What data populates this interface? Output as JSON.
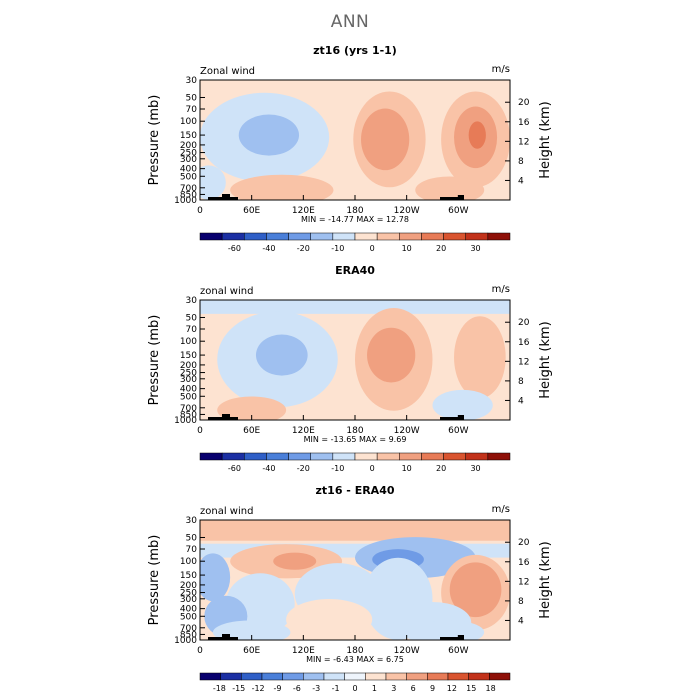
{
  "page_title": "ANN",
  "colors": {
    "frame": "#000000",
    "text": "#000000",
    "title_gray": "#666666"
  },
  "chart_data": [
    {
      "type": "heatmap",
      "title": "zt16 (yrs 1-1)",
      "left_label": "Zonal wind",
      "right_label": "m/s",
      "ylabel": "Pressure (mb)",
      "ylabel_right": "Height (km)",
      "xlabel": "",
      "pressure_ticks": [
        "30",
        "50",
        "70",
        "100",
        "150",
        "200",
        "250",
        "300",
        "400",
        "500",
        "700",
        "850",
        "1000"
      ],
      "height_ticks": [
        "4",
        "8",
        "12",
        "16",
        "20"
      ],
      "lon_ticks": [
        "0",
        "60E",
        "120E",
        "180",
        "120W",
        "60W"
      ],
      "stats_text": "MIN = -14.77  MAX = 12.78",
      "min": -14.77,
      "max": 12.78,
      "colorbar": {
        "labels": [
          "-60",
          "-40",
          "-20",
          "-10",
          "0",
          "10",
          "20",
          "30"
        ],
        "colors": [
          "#08006e",
          "#1b2fa3",
          "#2f5fc7",
          "#4a7fd9",
          "#6f9be6",
          "#9fc0f0",
          "#cfe3f8",
          "#fde3d1",
          "#f9c3a7",
          "#f0a080",
          "#e77b57",
          "#d9542f",
          "#c2321a",
          "#8e1008"
        ]
      },
      "features": [
        {
          "type": "band",
          "lat_from": 0,
          "lat_to": 360,
          "p_from": 30,
          "p_to": 1000,
          "color": "#fde3d1"
        },
        {
          "type": "blob",
          "lon": 75,
          "p": 160,
          "rx": 75,
          "ry": 1.3,
          "color": "#cfe3f8"
        },
        {
          "type": "blob",
          "lon": 80,
          "p": 150,
          "rx": 35,
          "ry": 0.6,
          "color": "#9fc0f0"
        },
        {
          "type": "blob",
          "lon": 10,
          "p": 600,
          "rx": 20,
          "ry": 0.5,
          "color": "#cfe3f8"
        },
        {
          "type": "blob",
          "lon": 220,
          "p": 170,
          "rx": 42,
          "ry": 1.4,
          "color": "#f9c3a7"
        },
        {
          "type": "blob",
          "lon": 215,
          "p": 170,
          "rx": 28,
          "ry": 0.9,
          "color": "#f0a080"
        },
        {
          "type": "blob",
          "lon": 320,
          "p": 170,
          "rx": 40,
          "ry": 1.4,
          "color": "#f9c3a7"
        },
        {
          "type": "blob",
          "lon": 320,
          "p": 160,
          "rx": 25,
          "ry": 0.9,
          "color": "#f0a080"
        },
        {
          "type": "blob",
          "lon": 322,
          "p": 150,
          "rx": 10,
          "ry": 0.4,
          "color": "#e77b57"
        },
        {
          "type": "blob",
          "lon": 95,
          "p": 750,
          "rx": 60,
          "ry": 0.45,
          "color": "#f9c3a7"
        },
        {
          "type": "blob",
          "lon": 290,
          "p": 750,
          "rx": 40,
          "ry": 0.4,
          "color": "#f9c3a7"
        }
      ]
    },
    {
      "type": "heatmap",
      "title": "ERA40",
      "left_label": "zonal wind",
      "right_label": "m/s",
      "ylabel": "Pressure (mb)",
      "ylabel_right": "Height (km)",
      "xlabel": "",
      "pressure_ticks": [
        "30",
        "50",
        "70",
        "100",
        "150",
        "200",
        "250",
        "300",
        "400",
        "500",
        "700",
        "850",
        "1000"
      ],
      "height_ticks": [
        "4",
        "8",
        "12",
        "16",
        "20"
      ],
      "lon_ticks": [
        "0",
        "60E",
        "120E",
        "180",
        "120W",
        "60W"
      ],
      "stats_text": "MIN = -13.65  MAX =   9.69",
      "min": -13.65,
      "max": 9.69,
      "colorbar": {
        "labels": [
          "-60",
          "-40",
          "-20",
          "-10",
          "0",
          "10",
          "20",
          "30"
        ],
        "colors": [
          "#08006e",
          "#1b2fa3",
          "#2f5fc7",
          "#4a7fd9",
          "#6f9be6",
          "#9fc0f0",
          "#cfe3f8",
          "#fde3d1",
          "#f9c3a7",
          "#f0a080",
          "#e77b57",
          "#d9542f",
          "#c2321a",
          "#8e1008"
        ]
      },
      "features": [
        {
          "type": "band",
          "lat_from": 0,
          "lat_to": 360,
          "p_from": 30,
          "p_to": 1000,
          "color": "#fde3d1"
        },
        {
          "type": "band",
          "lat_from": 0,
          "lat_to": 360,
          "p_from": 30,
          "p_to": 45,
          "color": "#cfe3f8"
        },
        {
          "type": "blob",
          "lon": 90,
          "p": 170,
          "rx": 70,
          "ry": 1.4,
          "color": "#cfe3f8"
        },
        {
          "type": "blob",
          "lon": 95,
          "p": 150,
          "rx": 30,
          "ry": 0.6,
          "color": "#9fc0f0"
        },
        {
          "type": "blob",
          "lon": 225,
          "p": 170,
          "rx": 45,
          "ry": 1.5,
          "color": "#f9c3a7"
        },
        {
          "type": "blob",
          "lon": 222,
          "p": 150,
          "rx": 28,
          "ry": 0.8,
          "color": "#f0a080"
        },
        {
          "type": "blob",
          "lon": 325,
          "p": 160,
          "rx": 30,
          "ry": 1.2,
          "color": "#f9c3a7"
        },
        {
          "type": "blob",
          "lon": 60,
          "p": 750,
          "rx": 40,
          "ry": 0.4,
          "color": "#f9c3a7"
        },
        {
          "type": "blob",
          "lon": 305,
          "p": 650,
          "rx": 35,
          "ry": 0.45,
          "color": "#cfe3f8"
        }
      ]
    },
    {
      "type": "heatmap",
      "title": "zt16 - ERA40",
      "left_label": "zonal wind",
      "right_label": "m/s",
      "ylabel": "Pressure (mb)",
      "ylabel_right": "Height (km)",
      "xlabel": "",
      "pressure_ticks": [
        "30",
        "50",
        "70",
        "100",
        "150",
        "200",
        "250",
        "300",
        "400",
        "500",
        "700",
        "850",
        "1000"
      ],
      "height_ticks": [
        "4",
        "8",
        "12",
        "16",
        "20"
      ],
      "lon_ticks": [
        "0",
        "60E",
        "120E",
        "180",
        "120W",
        "60W"
      ],
      "stats_text": "MIN =  -6.43  MAX =   6.75",
      "min": -6.43,
      "max": 6.75,
      "colorbar": {
        "labels": [
          "-18",
          "-15",
          "-12",
          "-9",
          "-6",
          "-3",
          "-1",
          "0",
          "1",
          "3",
          "6",
          "9",
          "12",
          "15",
          "18"
        ],
        "colors": [
          "#08006e",
          "#1b2fa3",
          "#2f5fc7",
          "#4a7fd9",
          "#6f9be6",
          "#9fc0f0",
          "#cfe3f8",
          "#eef4fb",
          "#fde3d1",
          "#f9c3a7",
          "#f0a080",
          "#e77b57",
          "#d9542f",
          "#c2321a",
          "#8e1008"
        ]
      },
      "features": [
        {
          "type": "band",
          "lat_from": 0,
          "lat_to": 360,
          "p_from": 30,
          "p_to": 1000,
          "color": "#fde3d1"
        },
        {
          "type": "band",
          "lat_from": 0,
          "lat_to": 360,
          "p_from": 30,
          "p_to": 55,
          "color": "#f9c3a7"
        },
        {
          "type": "band",
          "lat_from": 0,
          "lat_to": 360,
          "p_from": 60,
          "p_to": 90,
          "color": "#cfe3f8"
        },
        {
          "type": "blob",
          "lon": 250,
          "p": 90,
          "rx": 70,
          "ry": 0.6,
          "color": "#9fc0f0"
        },
        {
          "type": "blob",
          "lon": 230,
          "p": 95,
          "rx": 30,
          "ry": 0.3,
          "color": "#6f9be6"
        },
        {
          "type": "blob",
          "lon": 100,
          "p": 100,
          "rx": 65,
          "ry": 0.5,
          "color": "#f9c3a7"
        },
        {
          "type": "blob",
          "lon": 110,
          "p": 100,
          "rx": 25,
          "ry": 0.25,
          "color": "#f0a080"
        },
        {
          "type": "blob",
          "lon": 15,
          "p": 160,
          "rx": 20,
          "ry": 0.7,
          "color": "#9fc0f0"
        },
        {
          "type": "blob",
          "lon": 160,
          "p": 260,
          "rx": 50,
          "ry": 0.9,
          "color": "#cfe3f8"
        },
        {
          "type": "blob",
          "lon": 230,
          "p": 300,
          "rx": 40,
          "ry": 1.2,
          "color": "#cfe3f8"
        },
        {
          "type": "blob",
          "lon": 320,
          "p": 250,
          "rx": 40,
          "ry": 1.1,
          "color": "#f9c3a7"
        },
        {
          "type": "blob",
          "lon": 320,
          "p": 230,
          "rx": 30,
          "ry": 0.8,
          "color": "#f0a080"
        },
        {
          "type": "blob",
          "lon": 70,
          "p": 350,
          "rx": 40,
          "ry": 0.9,
          "color": "#cfe3f8"
        },
        {
          "type": "blob",
          "lon": 30,
          "p": 500,
          "rx": 25,
          "ry": 0.6,
          "color": "#9fc0f0"
        },
        {
          "type": "blob",
          "lon": 150,
          "p": 550,
          "rx": 50,
          "ry": 0.6,
          "color": "#fde3d1"
        },
        {
          "type": "blob",
          "lon": 270,
          "p": 600,
          "rx": 45,
          "ry": 0.6,
          "color": "#cfe3f8"
        },
        {
          "type": "blob",
          "lon": 60,
          "p": 800,
          "rx": 45,
          "ry": 0.35,
          "color": "#cfe3f8"
        },
        {
          "type": "blob",
          "lon": 290,
          "p": 800,
          "rx": 40,
          "ry": 0.35,
          "color": "#cfe3f8"
        }
      ]
    }
  ]
}
